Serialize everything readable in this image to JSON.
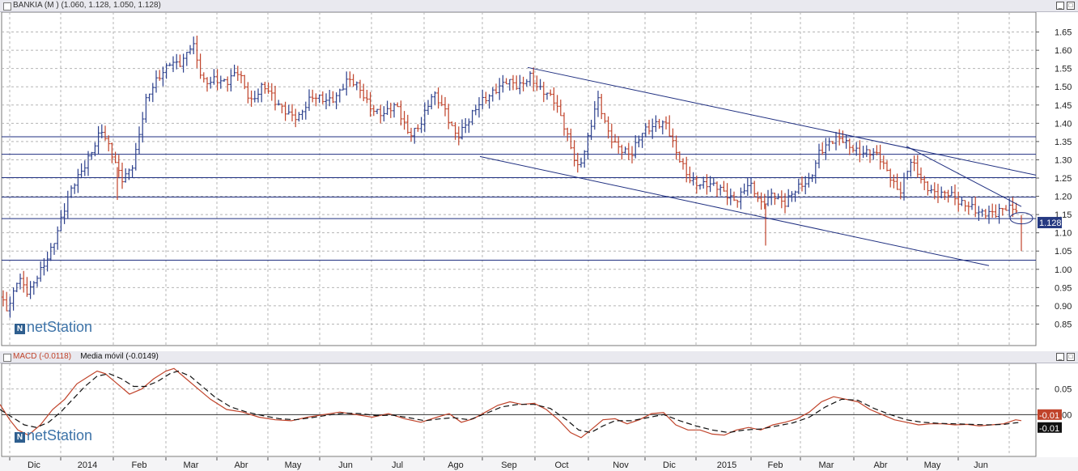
{
  "price_panel": {
    "header": "BANKIA (M ) (1.060, 1.128, 1.050, 1.128)",
    "last_price_label": "1.128",
    "logo": "netStation"
  },
  "macd_panel": {
    "header_macd": "MACD (-0.0118)",
    "header_avg": "Media móvil (-0.0149)",
    "macd_label": "-0.01",
    "avg_label": "-0.01",
    "logo": "netStation"
  },
  "x_axis": {
    "months": [
      "Dic",
      "2014",
      "Feb",
      "Mar",
      "Abr",
      "May",
      "Jun",
      "Jul",
      "Ago",
      "Sep",
      "Oct",
      "Nov",
      "Dic",
      "2015",
      "Feb",
      "Mar",
      "Abr",
      "May",
      "Jun"
    ]
  },
  "colors": {
    "up": "#2b3f8c",
    "down": "#c0432a",
    "lines": "#1f2f80",
    "axis_box": "#263a82"
  },
  "chart_data": [
    {
      "type": "candlestick",
      "title": "BANKIA (M )",
      "ohlc_last": {
        "open": 1.06,
        "high": 1.128,
        "low": 1.05,
        "close": 1.128
      },
      "ylim": [
        0.8,
        1.7
      ],
      "yticks": [
        0.85,
        0.9,
        0.95,
        1.0,
        1.05,
        1.1,
        1.15,
        1.2,
        1.25,
        1.3,
        1.35,
        1.4,
        1.45,
        1.5,
        1.55,
        1.6,
        1.65
      ],
      "ytick_labels": [
        "0.85",
        "0.90",
        "0.95",
        "1.00",
        "1.05",
        "1.10",
        "1.15",
        "1.20",
        "1.25",
        "1.30",
        "1.35",
        "1.40",
        "1.45",
        "1.50",
        "1.55",
        "1.60",
        "1.65"
      ],
      "horizontal_lines": [
        1.025,
        1.139,
        1.198,
        1.251,
        1.315,
        1.363
      ],
      "close_path": [
        [
          0,
          0.93
        ],
        [
          10,
          0.9
        ],
        [
          22,
          0.98
        ],
        [
          35,
          0.92
        ],
        [
          50,
          1.0
        ],
        [
          70,
          1.1
        ],
        [
          90,
          1.22
        ],
        [
          110,
          1.32
        ],
        [
          125,
          1.38
        ],
        [
          135,
          1.32
        ],
        [
          150,
          1.25
        ],
        [
          165,
          1.3
        ],
        [
          180,
          1.45
        ],
        [
          195,
          1.52
        ],
        [
          210,
          1.58
        ],
        [
          225,
          1.56
        ],
        [
          238,
          1.61
        ],
        [
          250,
          1.52
        ],
        [
          265,
          1.53
        ],
        [
          280,
          1.5
        ],
        [
          295,
          1.54
        ],
        [
          310,
          1.47
        ],
        [
          325,
          1.5
        ],
        [
          340,
          1.45
        ],
        [
          355,
          1.44
        ],
        [
          370,
          1.42
        ],
        [
          385,
          1.46
        ],
        [
          400,
          1.47
        ],
        [
          415,
          1.48
        ],
        [
          430,
          1.51
        ],
        [
          445,
          1.49
        ],
        [
          460,
          1.45
        ],
        [
          475,
          1.42
        ],
        [
          490,
          1.44
        ],
        [
          505,
          1.38
        ],
        [
          520,
          1.4
        ],
        [
          535,
          1.47
        ],
        [
          550,
          1.44
        ],
        [
          565,
          1.37
        ],
        [
          580,
          1.4
        ],
        [
          595,
          1.46
        ],
        [
          610,
          1.5
        ],
        [
          625,
          1.51
        ],
        [
          640,
          1.49
        ],
        [
          655,
          1.54
        ],
        [
          670,
          1.49
        ],
        [
          685,
          1.45
        ],
        [
          700,
          1.38
        ],
        [
          715,
          1.28
        ],
        [
          728,
          1.36
        ],
        [
          738,
          1.46
        ],
        [
          752,
          1.38
        ],
        [
          765,
          1.34
        ],
        [
          780,
          1.3
        ],
        [
          795,
          1.38
        ],
        [
          810,
          1.41
        ],
        [
          822,
          1.4
        ],
        [
          835,
          1.31
        ],
        [
          850,
          1.26
        ],
        [
          865,
          1.24
        ],
        [
          880,
          1.22
        ],
        [
          895,
          1.21
        ],
        [
          910,
          1.2
        ],
        [
          925,
          1.23
        ],
        [
          940,
          1.17
        ],
        [
          955,
          1.22
        ],
        [
          970,
          1.18
        ],
        [
          985,
          1.21
        ],
        [
          1000,
          1.25
        ],
        [
          1012,
          1.33
        ],
        [
          1025,
          1.34
        ],
        [
          1040,
          1.35
        ],
        [
          1055,
          1.34
        ],
        [
          1070,
          1.32
        ],
        [
          1085,
          1.3
        ],
        [
          1100,
          1.26
        ],
        [
          1112,
          1.22
        ],
        [
          1125,
          1.29
        ],
        [
          1140,
          1.23
        ],
        [
          1155,
          1.22
        ],
        [
          1170,
          1.21
        ],
        [
          1185,
          1.17
        ],
        [
          1200,
          1.18
        ],
        [
          1215,
          1.16
        ],
        [
          1230,
          1.14
        ],
        [
          1245,
          1.17
        ],
        [
          1255,
          1.18
        ],
        [
          1262,
          1.128
        ]
      ],
      "trendlines": [
        {
          "name": "canal superior",
          "from": [
            652,
            1.553
          ],
          "to": [
            1280,
            1.258
          ]
        },
        {
          "name": "canal inferior",
          "from": [
            593,
            1.309
          ],
          "to": [
            1222,
            1.01
          ]
        },
        {
          "name": "directriz",
          "from": [
            1120,
            1.337
          ],
          "to": [
            1262,
            1.172
          ]
        }
      ],
      "ellipse_center": [
        1262,
        1.14
      ]
    },
    {
      "type": "line",
      "title": "MACD",
      "ylim": [
        -0.08,
        0.1
      ],
      "yticks": [
        0.05,
        0.0
      ],
      "ytick_labels": [
        "0.05",
        "0.00"
      ],
      "zero_line": 0.0,
      "series": [
        {
          "name": "MACD",
          "color": "#c0432a",
          "dash": "none",
          "points": [
            [
              0,
              0.02
            ],
            [
              12,
              -0.01
            ],
            [
              22,
              -0.03
            ],
            [
              35,
              -0.04
            ],
            [
              50,
              -0.02
            ],
            [
              65,
              0.01
            ],
            [
              80,
              0.03
            ],
            [
              95,
              0.06
            ],
            [
              110,
              0.075
            ],
            [
              120,
              0.085
            ],
            [
              130,
              0.08
            ],
            [
              145,
              0.06
            ],
            [
              160,
              0.04
            ],
            [
              175,
              0.05
            ],
            [
              190,
              0.07
            ],
            [
              205,
              0.085
            ],
            [
              215,
              0.09
            ],
            [
              230,
              0.07
            ],
            [
              245,
              0.05
            ],
            [
              260,
              0.03
            ],
            [
              280,
              0.01
            ],
            [
              300,
              0.005
            ],
            [
              320,
              -0.005
            ],
            [
              340,
              -0.01
            ],
            [
              360,
              -0.012
            ],
            [
              380,
              -0.005
            ],
            [
              400,
              0.0
            ],
            [
              420,
              0.005
            ],
            [
              440,
              0.0
            ],
            [
              460,
              -0.005
            ],
            [
              480,
              0.002
            ],
            [
              500,
              -0.008
            ],
            [
              520,
              -0.015
            ],
            [
              540,
              -0.005
            ],
            [
              555,
              0.002
            ],
            [
              570,
              -0.015
            ],
            [
              585,
              -0.008
            ],
            [
              600,
              0.005
            ],
            [
              615,
              0.018
            ],
            [
              630,
              0.025
            ],
            [
              645,
              0.02
            ],
            [
              660,
              0.022
            ],
            [
              675,
              0.01
            ],
            [
              690,
              -0.01
            ],
            [
              705,
              -0.035
            ],
            [
              718,
              -0.045
            ],
            [
              730,
              -0.03
            ],
            [
              745,
              -0.01
            ],
            [
              760,
              -0.008
            ],
            [
              775,
              -0.018
            ],
            [
              790,
              -0.01
            ],
            [
              805,
              0.002
            ],
            [
              820,
              0.004
            ],
            [
              835,
              -0.02
            ],
            [
              850,
              -0.03
            ],
            [
              865,
              -0.03
            ],
            [
              880,
              -0.038
            ],
            [
              895,
              -0.04
            ],
            [
              910,
              -0.03
            ],
            [
              925,
              -0.025
            ],
            [
              940,
              -0.03
            ],
            [
              955,
              -0.02
            ],
            [
              970,
              -0.015
            ],
            [
              985,
              -0.008
            ],
            [
              1000,
              0.005
            ],
            [
              1015,
              0.025
            ],
            [
              1030,
              0.035
            ],
            [
              1045,
              0.03
            ],
            [
              1060,
              0.025
            ],
            [
              1075,
              0.01
            ],
            [
              1090,
              0.0
            ],
            [
              1105,
              -0.01
            ],
            [
              1120,
              -0.015
            ],
            [
              1135,
              -0.02
            ],
            [
              1150,
              -0.018
            ],
            [
              1165,
              -0.018
            ],
            [
              1180,
              -0.02
            ],
            [
              1195,
              -0.019
            ],
            [
              1210,
              -0.022
            ],
            [
              1225,
              -0.02
            ],
            [
              1240,
              -0.018
            ],
            [
              1255,
              -0.01
            ],
            [
              1262,
              -0.0118
            ]
          ]
        },
        {
          "name": "Media móvil",
          "color": "#111111",
          "dash": "7,4",
          "points": [
            [
              0,
              0.01
            ],
            [
              15,
              -0.005
            ],
            [
              30,
              -0.02
            ],
            [
              45,
              -0.025
            ],
            [
              60,
              -0.015
            ],
            [
              75,
              0.005
            ],
            [
              90,
              0.03
            ],
            [
              105,
              0.055
            ],
            [
              120,
              0.075
            ],
            [
              135,
              0.08
            ],
            [
              150,
              0.07
            ],
            [
              165,
              0.055
            ],
            [
              180,
              0.055
            ],
            [
              195,
              0.065
            ],
            [
              210,
              0.08
            ],
            [
              220,
              0.085
            ],
            [
              235,
              0.075
            ],
            [
              250,
              0.055
            ],
            [
              265,
              0.035
            ],
            [
              285,
              0.015
            ],
            [
              305,
              0.005
            ],
            [
              325,
              -0.002
            ],
            [
              345,
              -0.008
            ],
            [
              365,
              -0.01
            ],
            [
              385,
              -0.006
            ],
            [
              405,
              -0.001
            ],
            [
              425,
              0.003
            ],
            [
              445,
              0.002
            ],
            [
              465,
              -0.002
            ],
            [
              485,
              -0.001
            ],
            [
              505,
              -0.006
            ],
            [
              525,
              -0.012
            ],
            [
              545,
              -0.008
            ],
            [
              560,
              -0.006
            ],
            [
              580,
              -0.01
            ],
            [
              600,
              0.002
            ],
            [
              620,
              0.015
            ],
            [
              640,
              0.02
            ],
            [
              660,
              0.02
            ],
            [
              680,
              0.012
            ],
            [
              700,
              -0.01
            ],
            [
              715,
              -0.03
            ],
            [
              730,
              -0.035
            ],
            [
              745,
              -0.022
            ],
            [
              760,
              -0.012
            ],
            [
              780,
              -0.012
            ],
            [
              800,
              -0.006
            ],
            [
              820,
              0.0
            ],
            [
              840,
              -0.012
            ],
            [
              860,
              -0.022
            ],
            [
              880,
              -0.03
            ],
            [
              900,
              -0.035
            ],
            [
              920,
              -0.03
            ],
            [
              940,
              -0.028
            ],
            [
              960,
              -0.022
            ],
            [
              980,
              -0.016
            ],
            [
              1000,
              -0.005
            ],
            [
              1020,
              0.015
            ],
            [
              1040,
              0.03
            ],
            [
              1060,
              0.028
            ],
            [
              1080,
              0.012
            ],
            [
              1100,
              0.0
            ],
            [
              1120,
              -0.01
            ],
            [
              1140,
              -0.015
            ],
            [
              1160,
              -0.017
            ],
            [
              1180,
              -0.018
            ],
            [
              1200,
              -0.019
            ],
            [
              1220,
              -0.02
            ],
            [
              1240,
              -0.019
            ],
            [
              1255,
              -0.016
            ],
            [
              1262,
              -0.0149
            ]
          ]
        }
      ]
    }
  ]
}
